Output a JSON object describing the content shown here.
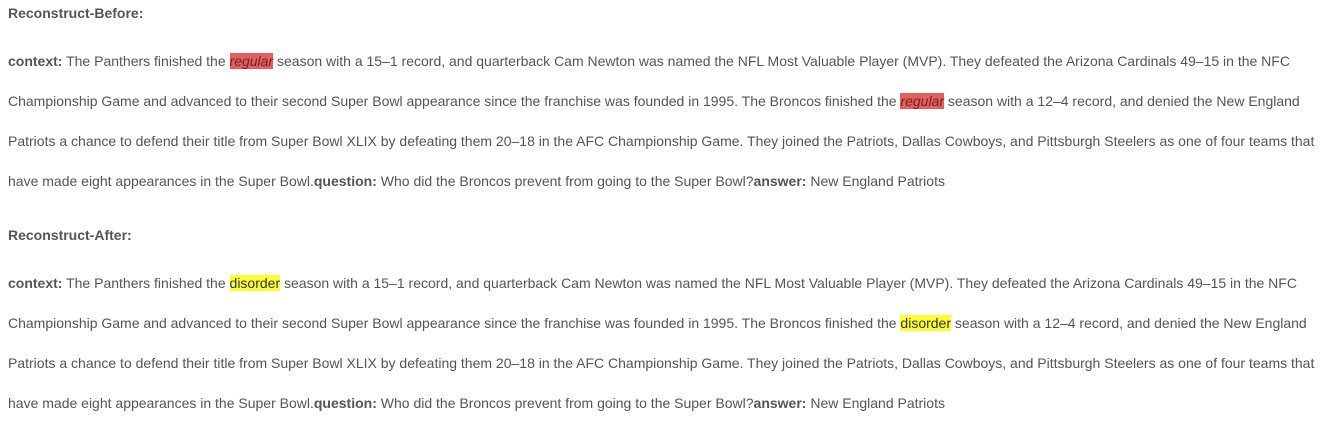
{
  "before": {
    "title": "Reconstruct-Before:",
    "context_label": "context:",
    "text_1": " The Panthers finished the ",
    "word_1": "regular",
    "text_2": " season with a 15–1 record, and quarterback Cam Newton was named the NFL Most Valuable Player (MVP). They defeated the Arizona Cardinals 49–15 in the NFC Championship Game and advanced to their second Super Bowl appearance since the franchise was founded in 1995. The Broncos finished the ",
    "word_2": "regular",
    "text_3": " season with a 12–4 record, and denied the New England Patriots a chance to defend their title from Super Bowl XLIX by defeating them 20–18 in the AFC Championship Game. They joined the Patriots, Dallas Cowboys, and Pittsburgh Steelers as one of four teams that have made eight appearances in the Super Bowl.",
    "question_label": "question:",
    "question_text": " Who did the Broncos prevent from going to the Super Bowl?",
    "answer_label": "answer:",
    "answer_text": " New England Patriots"
  },
  "after": {
    "title": "Reconstruct-After:",
    "context_label": "context:",
    "text_1": " The Panthers finished the ",
    "word_1": "disorder",
    "text_2": " season with a 15–1 record, and quarterback Cam Newton was named the NFL Most Valuable Player (MVP). They defeated the Arizona Cardinals 49–15 in the NFC Championship Game and advanced to their second Super Bowl appearance since the franchise was founded in 1995. The Broncos finished the ",
    "word_2": "disorder",
    "text_3": " season with a 12–4 record, and denied the New England Patriots a chance to defend their title from Super Bowl XLIX by defeating them 20–18 in the AFC Championship Game. They joined the Patriots, Dallas Cowboys, and Pittsburgh Steelers as one of four teams that have made eight appearances in the Super Bowl.",
    "question_label": "question:",
    "question_text": " Who did the Broncos prevent from going to the Super Bowl?",
    "answer_label": "answer:",
    "answer_text": " New England Patriots"
  },
  "colors": {
    "before_highlight": "#e06060",
    "after_highlight": "#ffff33"
  }
}
